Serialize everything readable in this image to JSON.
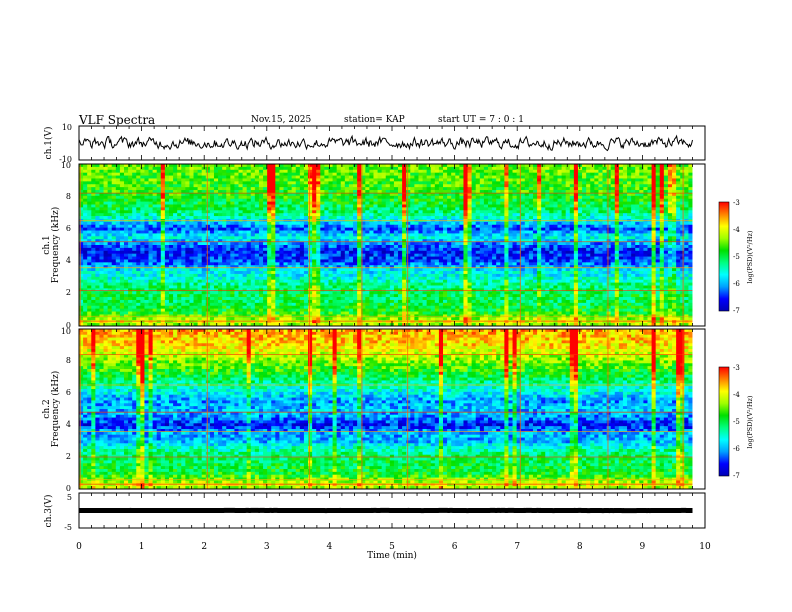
{
  "header": {
    "title": "VLF Spectra",
    "date": "Nov.15, 2025",
    "station": "station= KAP",
    "start_ut": "start  UT =   7 : 0  : 1"
  },
  "colors": {
    "colormap": [
      "#0000b4",
      "#0000ff",
      "#00a0ff",
      "#00ffff",
      "#00ff80",
      "#00e000",
      "#a0ff00",
      "#ffff00",
      "#ff8000",
      "#ff0000"
    ],
    "trace": "#000000",
    "axis": "#000000"
  },
  "chart_data": [
    {
      "id": "ch1_waveform",
      "type": "line",
      "ylabel": "ch.1(V)",
      "ylim": [
        -10,
        10
      ],
      "y_ticks": [
        "10",
        "-10"
      ],
      "xlim": [
        0,
        10
      ],
      "series_summary": {
        "mean": 0,
        "amplitude": 3.5
      },
      "x_end": 9.8
    },
    {
      "id": "ch1_spectrogram",
      "type": "heatmap",
      "ylabel_top": "ch.1",
      "ylabel": "Frequency (kHz)",
      "ylim": [
        0,
        10
      ],
      "y_ticks": [
        "0",
        "2",
        "4",
        "6",
        "8",
        "10"
      ],
      "xlim": [
        0,
        10
      ],
      "x_end": 9.8,
      "colorbar": {
        "label": "log(PSD)(V²/Hz)",
        "range": [
          -7,
          -3
        ],
        "ticks": [
          "-3",
          "-4",
          "-5",
          "-6",
          "-7"
        ]
      },
      "profile": [
        {
          "f": 0.0,
          "v": -4.4
        },
        {
          "f": 0.3,
          "v": -4.0
        },
        {
          "f": 0.6,
          "v": -4.6
        },
        {
          "f": 1.0,
          "v": -4.9
        },
        {
          "f": 1.5,
          "v": -5.1
        },
        {
          "f": 2.0,
          "v": -5.0
        },
        {
          "f": 2.5,
          "v": -5.2
        },
        {
          "f": 3.0,
          "v": -5.6
        },
        {
          "f": 3.5,
          "v": -5.8
        },
        {
          "f": 4.0,
          "v": -6.4
        },
        {
          "f": 4.6,
          "v": -6.6
        },
        {
          "f": 5.0,
          "v": -6.2
        },
        {
          "f": 5.5,
          "v": -5.6
        },
        {
          "f": 6.0,
          "v": -6.4
        },
        {
          "f": 6.5,
          "v": -5.7
        },
        {
          "f": 7.0,
          "v": -5.2
        },
        {
          "f": 8.0,
          "v": -4.8
        },
        {
          "f": 9.0,
          "v": -4.6
        },
        {
          "f": 10.0,
          "v": -4.5
        }
      ],
      "lines_khz": [
        0.3,
        0.6,
        2.2,
        3.6,
        5.2,
        6.5,
        8.2
      ]
    },
    {
      "id": "ch2_spectrogram",
      "type": "heatmap",
      "ylabel_top": "ch.2",
      "ylabel": "Frequency (kHz)",
      "ylim": [
        0,
        10
      ],
      "y_ticks": [
        "0",
        "2",
        "4",
        "6",
        "8",
        "10"
      ],
      "xlim": [
        0,
        10
      ],
      "x_end": 9.8,
      "colorbar": {
        "label": "log(PSD)(V²/Hz)",
        "range": [
          -7,
          -3
        ],
        "ticks": [
          "-3",
          "-4",
          "-5",
          "-6",
          "-7"
        ]
      },
      "profile": [
        {
          "f": 0.0,
          "v": -4.3
        },
        {
          "f": 0.3,
          "v": -4.0
        },
        {
          "f": 0.6,
          "v": -4.5
        },
        {
          "f": 1.0,
          "v": -4.9
        },
        {
          "f": 1.5,
          "v": -5.0
        },
        {
          "f": 2.0,
          "v": -5.1
        },
        {
          "f": 2.5,
          "v": -5.4
        },
        {
          "f": 3.0,
          "v": -6.0
        },
        {
          "f": 3.5,
          "v": -6.0
        },
        {
          "f": 4.0,
          "v": -6.6
        },
        {
          "f": 4.5,
          "v": -6.1
        },
        {
          "f": 5.0,
          "v": -5.9
        },
        {
          "f": 5.5,
          "v": -6.1
        },
        {
          "f": 6.0,
          "v": -5.7
        },
        {
          "f": 7.0,
          "v": -5.0
        },
        {
          "f": 8.0,
          "v": -4.4
        },
        {
          "f": 9.0,
          "v": -3.8
        },
        {
          "f": 10.0,
          "v": -3.6
        }
      ],
      "lines_khz": [
        0.3,
        0.6,
        2.0,
        3.6,
        4.8,
        6.5,
        8.4
      ]
    },
    {
      "id": "ch3_waveform",
      "type": "line",
      "ylabel": "ch.3(V)",
      "ylim": [
        -5,
        5
      ],
      "y_ticks": [
        "5",
        "-5"
      ],
      "xlim": [
        0,
        10
      ],
      "series_summary": {
        "mean": 0,
        "amplitude": 0.6
      },
      "x_end": 9.8
    }
  ],
  "x_axis": {
    "label": "Time (min)",
    "ticks": [
      "0",
      "1",
      "2",
      "3",
      "4",
      "5",
      "6",
      "7",
      "8",
      "9",
      "10"
    ]
  }
}
